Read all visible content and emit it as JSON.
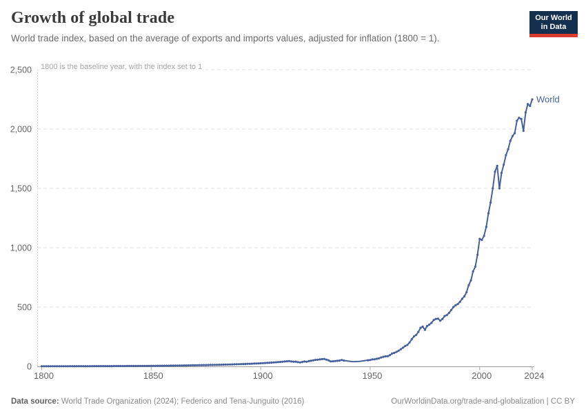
{
  "header": {
    "title": "Growth of global trade",
    "subtitle": "World trade index, based on the average of exports and imports values, adjusted for inflation (1800 = 1).",
    "logo": {
      "line1": "Our World",
      "line2": "in Data",
      "bg": "#15304e",
      "accent": "#dc3b2d"
    }
  },
  "chart_data": {
    "type": "line",
    "title": "Growth of global trade",
    "note": "1800 is the baseline year, with the index set to 1",
    "xlabel": "",
    "ylabel": "",
    "xlim": [
      1800,
      2024
    ],
    "ylim": [
      0,
      2500
    ],
    "x_ticks": [
      1800,
      1850,
      1900,
      1950,
      2000,
      2024
    ],
    "y_ticks": [
      0,
      500,
      1000,
      1500,
      2000,
      2500
    ],
    "grid": "dashed-horizontal",
    "legend_position": "end-of-line-label",
    "marker_gap_years": [
      1939,
      1948
    ],
    "series": [
      {
        "name": "World",
        "color": "#46609c",
        "points": [
          [
            1800,
            1
          ],
          [
            1801,
            1
          ],
          [
            1802,
            1.1
          ],
          [
            1803,
            1.1
          ],
          [
            1804,
            1.1
          ],
          [
            1805,
            1.2
          ],
          [
            1806,
            1.2
          ],
          [
            1807,
            1.2
          ],
          [
            1808,
            1.3
          ],
          [
            1809,
            1.3
          ],
          [
            1810,
            1.4
          ],
          [
            1811,
            1.4
          ],
          [
            1812,
            1.4
          ],
          [
            1813,
            1.5
          ],
          [
            1814,
            1.5
          ],
          [
            1815,
            1.6
          ],
          [
            1816,
            1.6
          ],
          [
            1817,
            1.7
          ],
          [
            1818,
            1.7
          ],
          [
            1819,
            1.8
          ],
          [
            1820,
            1.8
          ],
          [
            1821,
            1.9
          ],
          [
            1822,
            1.9
          ],
          [
            1823,
            2
          ],
          [
            1824,
            2.1
          ],
          [
            1825,
            2.1
          ],
          [
            1826,
            2.2
          ],
          [
            1827,
            2.2
          ],
          [
            1828,
            2.3
          ],
          [
            1829,
            2.4
          ],
          [
            1830,
            2.5
          ],
          [
            1831,
            2.5
          ],
          [
            1832,
            2.6
          ],
          [
            1833,
            2.7
          ],
          [
            1834,
            2.8
          ],
          [
            1835,
            2.9
          ],
          [
            1836,
            2.9
          ],
          [
            1837,
            3
          ],
          [
            1838,
            3.1
          ],
          [
            1839,
            3.2
          ],
          [
            1840,
            3.3
          ],
          [
            1841,
            3.4
          ],
          [
            1842,
            3.5
          ],
          [
            1843,
            3.6
          ],
          [
            1844,
            3.7
          ],
          [
            1845,
            3.9
          ],
          [
            1846,
            4
          ],
          [
            1847,
            4.1
          ],
          [
            1848,
            4.2
          ],
          [
            1849,
            4.3
          ],
          [
            1850,
            4.5
          ],
          [
            1851,
            4.7
          ],
          [
            1852,
            4.8
          ],
          [
            1853,
            5
          ],
          [
            1854,
            5.2
          ],
          [
            1855,
            5.4
          ],
          [
            1856,
            5.6
          ],
          [
            1857,
            5.8
          ],
          [
            1858,
            6.1
          ],
          [
            1859,
            6.3
          ],
          [
            1860,
            6.5
          ],
          [
            1861,
            6.8
          ],
          [
            1862,
            7
          ],
          [
            1863,
            7.3
          ],
          [
            1864,
            7.6
          ],
          [
            1865,
            7.9
          ],
          [
            1866,
            8.2
          ],
          [
            1867,
            8.5
          ],
          [
            1868,
            8.8
          ],
          [
            1869,
            9.1
          ],
          [
            1870,
            9.5
          ],
          [
            1871,
            9.8
          ],
          [
            1872,
            10.2
          ],
          [
            1873,
            10.5
          ],
          [
            1874,
            10.9
          ],
          [
            1875,
            11.2
          ],
          [
            1876,
            11.6
          ],
          [
            1877,
            12
          ],
          [
            1878,
            12.4
          ],
          [
            1879,
            12.9
          ],
          [
            1880,
            13.3
          ],
          [
            1881,
            13.8
          ],
          [
            1882,
            14.2
          ],
          [
            1883,
            14.7
          ],
          [
            1884,
            15.2
          ],
          [
            1885,
            15.7
          ],
          [
            1886,
            16.3
          ],
          [
            1887,
            16.8
          ],
          [
            1888,
            17.4
          ],
          [
            1889,
            18
          ],
          [
            1890,
            18.6
          ],
          [
            1891,
            19.2
          ],
          [
            1892,
            19.9
          ],
          [
            1893,
            20.6
          ],
          [
            1894,
            21.3
          ],
          [
            1895,
            22
          ],
          [
            1896,
            22.8
          ],
          [
            1897,
            23.6
          ],
          [
            1898,
            24.4
          ],
          [
            1899,
            25.2
          ],
          [
            1900,
            26
          ],
          [
            1901,
            27.1
          ],
          [
            1902,
            28.3
          ],
          [
            1903,
            29.5
          ],
          [
            1904,
            30.8
          ],
          [
            1905,
            32.1
          ],
          [
            1906,
            33.5
          ],
          [
            1907,
            34.9
          ],
          [
            1908,
            36.4
          ],
          [
            1909,
            38
          ],
          [
            1910,
            39.6
          ],
          [
            1911,
            41.3
          ],
          [
            1912,
            43.1
          ],
          [
            1913,
            45
          ],
          [
            1914,
            41
          ],
          [
            1915,
            39
          ],
          [
            1916,
            40
          ],
          [
            1917,
            36
          ],
          [
            1918,
            34
          ],
          [
            1919,
            37
          ],
          [
            1920,
            41
          ],
          [
            1921,
            39
          ],
          [
            1922,
            44
          ],
          [
            1923,
            47
          ],
          [
            1924,
            51
          ],
          [
            1925,
            55
          ],
          [
            1926,
            56
          ],
          [
            1927,
            59
          ],
          [
            1928,
            61
          ],
          [
            1929,
            63
          ],
          [
            1930,
            57
          ],
          [
            1931,
            51
          ],
          [
            1932,
            42
          ],
          [
            1933,
            43
          ],
          [
            1934,
            45
          ],
          [
            1935,
            47
          ],
          [
            1936,
            49
          ],
          [
            1937,
            54
          ],
          [
            1938,
            49
          ],
          [
            1939,
            47
          ],
          [
            1940,
            44
          ],
          [
            1941,
            42
          ],
          [
            1942,
            40
          ],
          [
            1943,
            40
          ],
          [
            1944,
            41
          ],
          [
            1945,
            42
          ],
          [
            1946,
            44
          ],
          [
            1947,
            47
          ],
          [
            1948,
            50
          ],
          [
            1949,
            52
          ],
          [
            1950,
            54
          ],
          [
            1951,
            59
          ],
          [
            1952,
            60
          ],
          [
            1953,
            64
          ],
          [
            1954,
            68
          ],
          [
            1955,
            75
          ],
          [
            1956,
            81
          ],
          [
            1957,
            85
          ],
          [
            1958,
            86
          ],
          [
            1959,
            95
          ],
          [
            1960,
            108
          ],
          [
            1961,
            114
          ],
          [
            1962,
            122
          ],
          [
            1963,
            132
          ],
          [
            1964,
            145
          ],
          [
            1965,
            158
          ],
          [
            1966,
            172
          ],
          [
            1967,
            181
          ],
          [
            1968,
            202
          ],
          [
            1969,
            229
          ],
          [
            1970,
            253
          ],
          [
            1971,
            265
          ],
          [
            1972,
            290
          ],
          [
            1973,
            325
          ],
          [
            1974,
            335
          ],
          [
            1975,
            308
          ],
          [
            1976,
            340
          ],
          [
            1977,
            352
          ],
          [
            1978,
            367
          ],
          [
            1979,
            390
          ],
          [
            1980,
            400
          ],
          [
            1981,
            402
          ],
          [
            1982,
            385
          ],
          [
            1983,
            400
          ],
          [
            1984,
            424
          ],
          [
            1985,
            432
          ],
          [
            1986,
            450
          ],
          [
            1987,
            475
          ],
          [
            1988,
            500
          ],
          [
            1989,
            515
          ],
          [
            1990,
            525
          ],
          [
            1991,
            545
          ],
          [
            1992,
            570
          ],
          [
            1993,
            590
          ],
          [
            1994,
            625
          ],
          [
            1995,
            685
          ],
          [
            1996,
            725
          ],
          [
            1997,
            800
          ],
          [
            1998,
            840
          ],
          [
            1999,
            940
          ],
          [
            2000,
            1075
          ],
          [
            2001,
            1065
          ],
          [
            2002,
            1100
          ],
          [
            2003,
            1175
          ],
          [
            2004,
            1290
          ],
          [
            2005,
            1380
          ],
          [
            2006,
            1500
          ],
          [
            2007,
            1640
          ],
          [
            2008,
            1690
          ],
          [
            2009,
            1500
          ],
          [
            2010,
            1630
          ],
          [
            2011,
            1700
          ],
          [
            2012,
            1780
          ],
          [
            2013,
            1830
          ],
          [
            2014,
            1900
          ],
          [
            2015,
            1940
          ],
          [
            2016,
            1965
          ],
          [
            2017,
            2070
          ],
          [
            2018,
            2095
          ],
          [
            2019,
            2085
          ],
          [
            2020,
            1985
          ],
          [
            2021,
            2140
          ],
          [
            2022,
            2210
          ],
          [
            2023,
            2195
          ],
          [
            2024,
            2250
          ]
        ]
      }
    ]
  },
  "footer": {
    "source_label": "Data source:",
    "source_text": " World Trade Organization (2024); Federico and Tena-Junguito (2016)",
    "link_text": "OurWorldinData.org/trade-and-globalization | CC BY"
  }
}
